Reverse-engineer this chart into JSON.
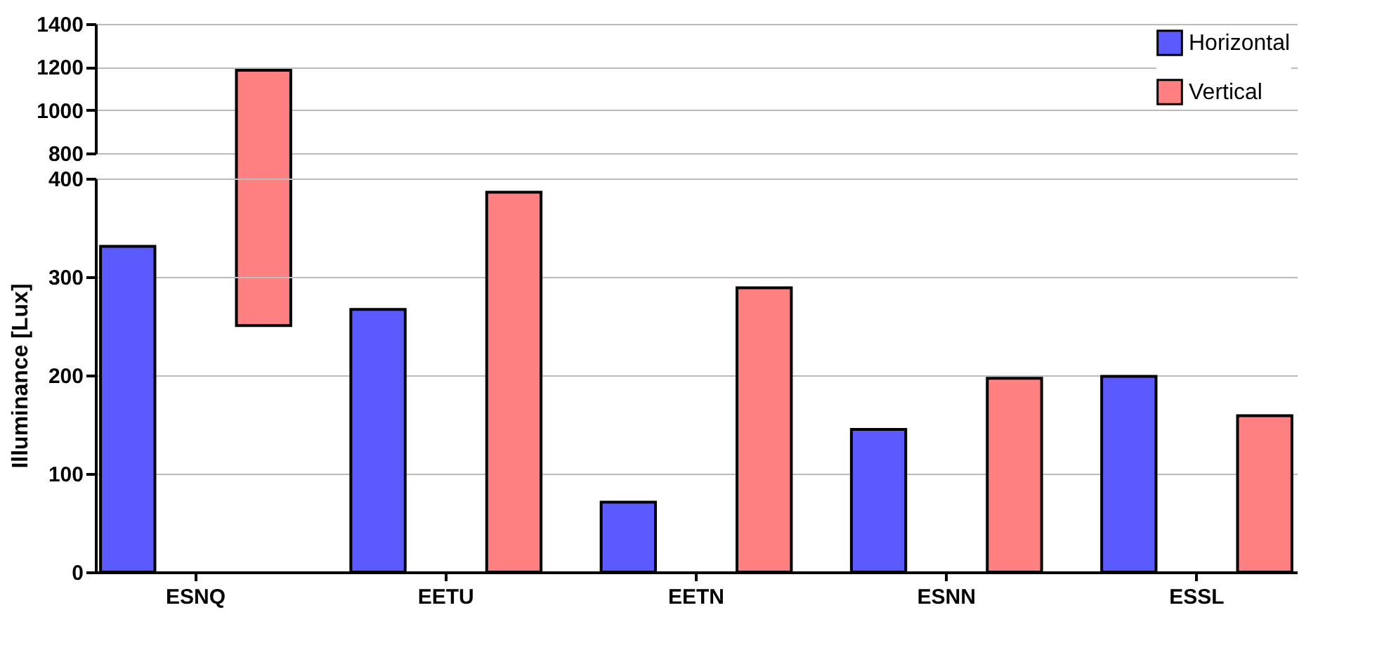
{
  "chart_data": [
    {
      "type": "bar",
      "series": [
        {
          "name": "Horizontal",
          "color": "#5a5aff",
          "values": [
            null,
            null,
            null,
            null,
            null
          ]
        },
        {
          "name": "Vertical",
          "color": "#ff8080",
          "values": [
            1185,
            null,
            null,
            null,
            null
          ]
        }
      ],
      "ylim": [
        800,
        1400
      ],
      "yticks": [
        800,
        1000,
        1200,
        1400
      ],
      "grid": "y",
      "legend": "top right",
      "tick_labels": "y"
    },
    {
      "type": "bar",
      "categories": [
        "ESNQ",
        "EETU",
        "EETN",
        "ESNN",
        "ESSL"
      ],
      "ylabel": "Illuminance [Lux]",
      "series": [
        {
          "color": "#5a5aff",
          "values": [
            331,
            267,
            71,
            145,
            199
          ]
        },
        {
          "color": "#ff8080",
          "values": [
            null,
            386,
            289,
            197,
            159
          ]
        }
      ],
      "ylim": [
        0,
        400
      ],
      "yticks": [
        0,
        100,
        200,
        300,
        400
      ],
      "grid": "y"
    }
  ]
}
